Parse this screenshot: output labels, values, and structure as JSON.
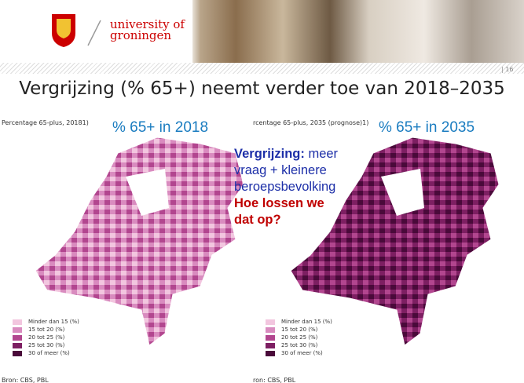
{
  "header": {
    "logo_line1": "university of",
    "logo_line2": "groningen",
    "page": "| 16"
  },
  "title": "Vergrijzing (% 65+) neemt verder toe van 2018–2035",
  "maps": [
    {
      "caption": "Percentage 65-plus, 20181)",
      "heading": "% 65+ in 2018",
      "source": "Bron: CBS, PBL"
    },
    {
      "caption": "rcentage 65-plus, 2035 (prognose)1)",
      "heading": "% 65+ in 2035",
      "source": "ron: CBS, PBL"
    }
  ],
  "legend": [
    "Minder dan 15 (%)",
    "15 tot 20 (%)",
    "20 tot 25 (%)",
    "25 tot 30 (%)",
    "30 of meer (%)"
  ],
  "callout": {
    "bold": "Vergrijzing:",
    "text": "meer vraag + kleinere beroepsbevolking",
    "question": "Hoe lossen we dat op?"
  }
}
